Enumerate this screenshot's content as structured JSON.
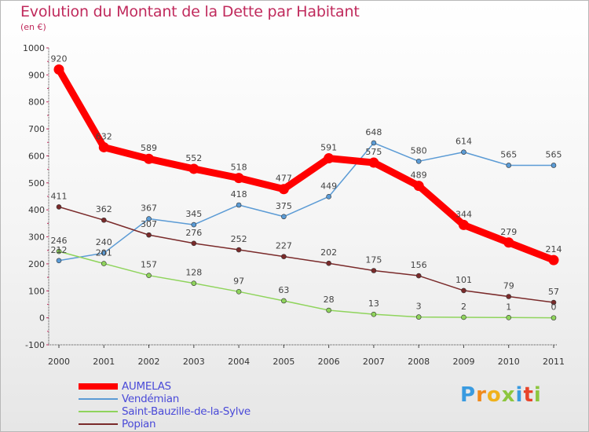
{
  "header": {
    "title": "Evolution du Montant de la Dette par Habitant",
    "subtitle": "(en €)"
  },
  "brand": {
    "text": "Proxiti"
  },
  "chart_data": {
    "type": "line",
    "title": "Evolution du Montant de la Dette par Habitant",
    "ylabel": "(en €)",
    "xlabel": "",
    "x": [
      "2000",
      "2001",
      "2002",
      "2003",
      "2004",
      "2005",
      "2006",
      "2007",
      "2008",
      "2009",
      "2010",
      "2011"
    ],
    "ylim": [
      -100,
      1000
    ],
    "yticks": [
      -100,
      0,
      100,
      200,
      300,
      400,
      500,
      600,
      700,
      800,
      900,
      1000
    ],
    "grid": false,
    "legend_position": "bottom-left",
    "series": [
      {
        "name": "AUMELAS",
        "color": "#ff0000",
        "values": [
          920,
          632,
          589,
          552,
          518,
          477,
          591,
          575,
          489,
          344,
          279,
          214
        ]
      },
      {
        "name": "Vendémian",
        "color": "#5b9bd5",
        "values": [
          212,
          240,
          367,
          345,
          418,
          375,
          449,
          648,
          580,
          614,
          565,
          565
        ]
      },
      {
        "name": "Saint-Bauzille-de-la-Sylve",
        "color": "#8fd45c",
        "values": [
          246,
          201,
          157,
          128,
          97,
          63,
          28,
          13,
          3,
          2,
          1,
          0
        ]
      },
      {
        "name": "Popian",
        "color": "#7a2a2a",
        "values": [
          411,
          362,
          307,
          276,
          252,
          227,
          202,
          175,
          156,
          101,
          79,
          57
        ]
      }
    ]
  }
}
